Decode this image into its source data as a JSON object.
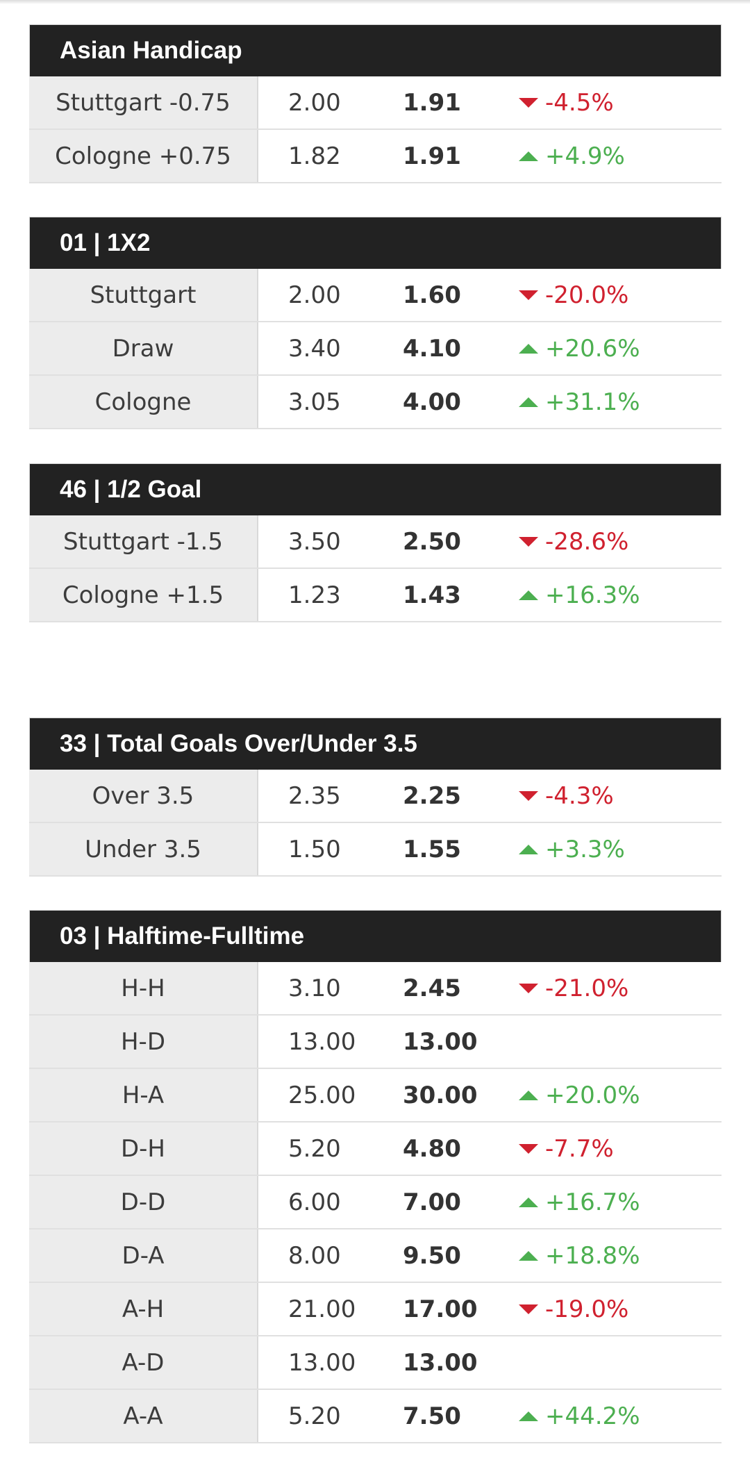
{
  "sections": [
    {
      "title": "Asian Handicap",
      "rows": [
        {
          "label": "Stuttgart -0.75",
          "open": "2.00",
          "current": "1.91",
          "change": "-4.5%",
          "dir": "down"
        },
        {
          "label": "Cologne +0.75",
          "open": "1.82",
          "current": "1.91",
          "change": "+4.9%",
          "dir": "up"
        }
      ]
    },
    {
      "title": "01 | 1X2",
      "rows": [
        {
          "label": "Stuttgart",
          "open": "2.00",
          "current": "1.60",
          "change": "-20.0%",
          "dir": "down"
        },
        {
          "label": "Draw",
          "open": "3.40",
          "current": "4.10",
          "change": "+20.6%",
          "dir": "up"
        },
        {
          "label": "Cologne",
          "open": "3.05",
          "current": "4.00",
          "change": "+31.1%",
          "dir": "up"
        }
      ]
    },
    {
      "title": "46 | 1/2 Goal",
      "rows": [
        {
          "label": "Stuttgart -1.5",
          "open": "3.50",
          "current": "2.50",
          "change": "-28.6%",
          "dir": "down"
        },
        {
          "label": "Cologne +1.5",
          "open": "1.23",
          "current": "1.43",
          "change": "+16.3%",
          "dir": "up"
        }
      ]
    },
    {
      "title": "33 | Total Goals Over/Under 3.5",
      "rows": [
        {
          "label": "Over 3.5",
          "open": "2.35",
          "current": "2.25",
          "change": "-4.3%",
          "dir": "down"
        },
        {
          "label": "Under 3.5",
          "open": "1.50",
          "current": "1.55",
          "change": "+3.3%",
          "dir": "up"
        }
      ]
    },
    {
      "title": "03 | Halftime-Fulltime",
      "rows": [
        {
          "label": "H-H",
          "open": "3.10",
          "current": "2.45",
          "change": "-21.0%",
          "dir": "down"
        },
        {
          "label": "H-D",
          "open": "13.00",
          "current": "13.00",
          "change": "",
          "dir": "none"
        },
        {
          "label": "H-A",
          "open": "25.00",
          "current": "30.00",
          "change": "+20.0%",
          "dir": "up"
        },
        {
          "label": "D-H",
          "open": "5.20",
          "current": "4.80",
          "change": "-7.7%",
          "dir": "down"
        },
        {
          "label": "D-D",
          "open": "6.00",
          "current": "7.00",
          "change": "+16.7%",
          "dir": "up"
        },
        {
          "label": "D-A",
          "open": "8.00",
          "current": "9.50",
          "change": "+18.8%",
          "dir": "up"
        },
        {
          "label": "A-H",
          "open": "21.00",
          "current": "17.00",
          "change": "-19.0%",
          "dir": "down"
        },
        {
          "label": "A-D",
          "open": "13.00",
          "current": "13.00",
          "change": "",
          "dir": "none"
        },
        {
          "label": "A-A",
          "open": "5.20",
          "current": "7.50",
          "change": "+44.2%",
          "dir": "up"
        }
      ]
    }
  ],
  "colors": {
    "header_bg": "#222222",
    "label_bg": "#ececec",
    "down": "#d0212f",
    "up": "#4caf50"
  }
}
